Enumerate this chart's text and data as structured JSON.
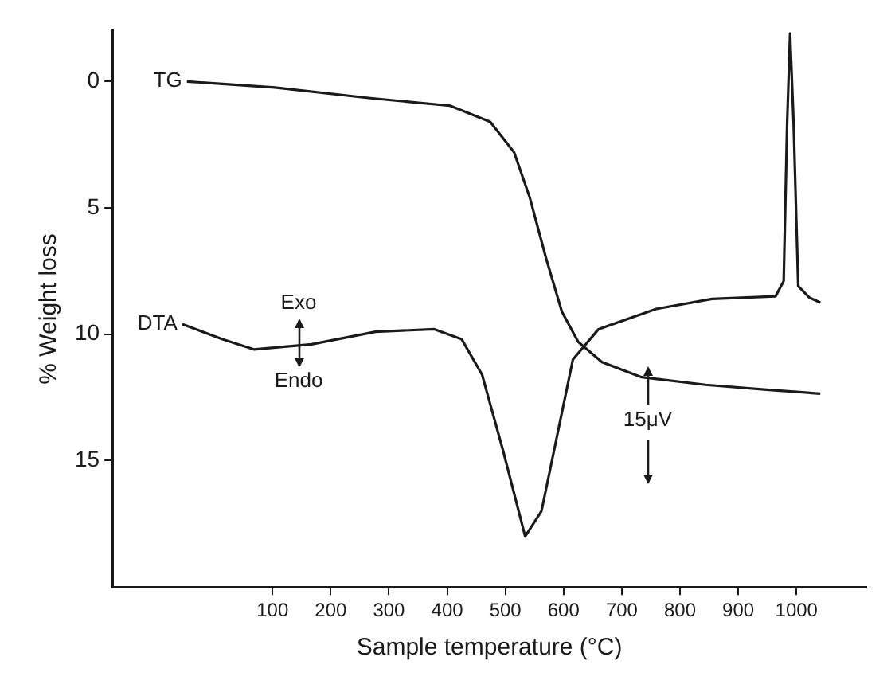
{
  "chart_data": {
    "type": "line",
    "xlabel": "Sample temperature (°C)",
    "ylabel": "% Weight loss",
    "xlim": [
      -175,
      1120
    ],
    "xticks": [
      100,
      200,
      300,
      400,
      500,
      600,
      700,
      800,
      900,
      1000
    ],
    "ylim": [
      20,
      -2
    ],
    "yticks": [
      0,
      5,
      10,
      15
    ],
    "grid": false,
    "legend": false,
    "marker": "none",
    "line_style": "solid",
    "annotations": [
      "Exo",
      "Endo",
      "15μV"
    ],
    "series": [
      {
        "name": "TG",
        "color": "#1a1a1a",
        "x": [
          -47,
          104,
          268,
          405,
          474,
          515,
          542,
          570,
          597,
          625,
          666,
          734,
          844,
          953,
          1041
        ],
        "values": [
          0,
          0.24,
          0.66,
          0.96,
          1.6,
          2.8,
          4.6,
          7.0,
          9.1,
          10.3,
          11.1,
          11.7,
          12.0,
          12.2,
          12.35
        ]
      },
      {
        "name": "DTA",
        "color": "#1a1a1a",
        "x": [
          -55,
          14,
          68,
          167,
          277,
          378,
          425,
          460,
          496,
          534,
          562,
          589,
          616,
          660,
          759,
          855,
          964,
          978,
          984,
          989,
          995,
          1003,
          1022,
          1041
        ],
        "values": [
          9.6,
          10.2,
          10.6,
          10.4,
          9.9,
          9.8,
          10.2,
          11.6,
          14.6,
          18.0,
          17.0,
          14.0,
          11.0,
          9.8,
          9.0,
          8.6,
          8.5,
          7.9,
          1.6,
          -1.9,
          1.6,
          8.1,
          8.55,
          8.75
        ]
      }
    ]
  }
}
